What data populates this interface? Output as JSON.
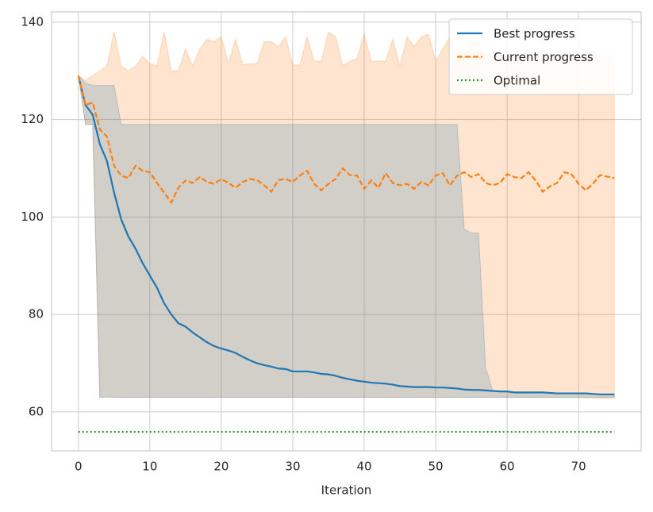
{
  "chart_data": {
    "type": "line",
    "xlabel": "Iteration",
    "x": [
      0,
      1,
      2,
      3,
      4,
      5,
      6,
      7,
      8,
      9,
      10,
      11,
      12,
      13,
      14,
      15,
      16,
      17,
      18,
      19,
      20,
      21,
      22,
      23,
      24,
      25,
      26,
      27,
      28,
      29,
      30,
      31,
      32,
      33,
      34,
      35,
      36,
      37,
      38,
      39,
      40,
      41,
      42,
      43,
      44,
      45,
      46,
      47,
      48,
      49,
      50,
      51,
      52,
      53,
      54,
      55,
      56,
      57,
      58,
      59,
      60,
      61,
      62,
      63,
      64,
      65,
      66,
      67,
      68,
      69,
      70,
      71,
      72,
      73,
      74,
      75
    ],
    "series": [
      {
        "name": "Best progress",
        "color": "#1f77b4",
        "dash": "solid",
        "values": [
          129,
          123,
          121,
          115,
          111.5,
          105,
          99.5,
          96,
          93.5,
          90.5,
          88,
          85.5,
          82.3,
          80,
          78.2,
          77.5,
          76.3,
          75.3,
          74.3,
          73.5,
          73,
          72.6,
          72.1,
          71.3,
          70.6,
          70,
          69.6,
          69.3,
          68.9,
          68.8,
          68.3,
          68.3,
          68.3,
          68.1,
          67.8,
          67.7,
          67.4,
          67,
          66.7,
          66.4,
          66.2,
          66,
          65.9,
          65.8,
          65.6,
          65.3,
          65.2,
          65.1,
          65.1,
          65.1,
          65,
          65,
          64.9,
          64.8,
          64.6,
          64.5,
          64.5,
          64.4,
          64.3,
          64.2,
          64.2,
          64,
          64,
          64,
          64,
          64,
          63.9,
          63.8,
          63.8,
          63.8,
          63.8,
          63.8,
          63.7,
          63.6,
          63.6,
          63.6
        ]
      },
      {
        "name": "Current progress",
        "color": "#ff7f0e",
        "dash": "dashed",
        "values": [
          129,
          123,
          123.5,
          118,
          116.5,
          110.5,
          108.5,
          108,
          110.5,
          109.5,
          109.2,
          107,
          105,
          103,
          106,
          107.5,
          107,
          108.2,
          107.2,
          106.8,
          107.8,
          107,
          106,
          107.2,
          107.8,
          107.6,
          106.5,
          105.2,
          107.6,
          107.8,
          107.2,
          108.5,
          109.5,
          106.8,
          105.5,
          106.8,
          107.8,
          110,
          108.6,
          108.5,
          105.8,
          107.5,
          106,
          109,
          107,
          106.5,
          106.8,
          105.8,
          107.2,
          106.5,
          108.5,
          109,
          106.5,
          108.5,
          109.2,
          108.2,
          108.8,
          107,
          106.5,
          107,
          108.8,
          108.2,
          108,
          109.2,
          107.5,
          105.2,
          106.3,
          107,
          109.2,
          108.8,
          106.8,
          105.5,
          106.8,
          108.6,
          108.3,
          108
        ]
      },
      {
        "name": "Optimal",
        "color": "#2ca02c",
        "dash": "dotted",
        "x": [
          0,
          75
        ],
        "values": [
          55.9,
          55.9
        ]
      }
    ],
    "bands": [
      {
        "color": "#ff7f0e",
        "upper": [
          129,
          128,
          129,
          130,
          131,
          138,
          131,
          130,
          131,
          133,
          131.5,
          131,
          138,
          130,
          130,
          134.5,
          131,
          134.5,
          136.5,
          136,
          137,
          131.5,
          136.5,
          131.2,
          131.5,
          131.5,
          136,
          136,
          135,
          137,
          131.2,
          131.2,
          137,
          132,
          132,
          138,
          137,
          131,
          132,
          132.5,
          137.5,
          132,
          132,
          132,
          136.5,
          131,
          137,
          135,
          137,
          137.5,
          132,
          134.5,
          137,
          133,
          133.5,
          136,
          136,
          133,
          133.5,
          133,
          133,
          133,
          133,
          133,
          133,
          133,
          133,
          133,
          133,
          133,
          133,
          133,
          133,
          133,
          133,
          133
        ],
        "lower": [
          129,
          119,
          119,
          63,
          63.2,
          63,
          63,
          63,
          63,
          63,
          63,
          63,
          63,
          63,
          63,
          63,
          63,
          63,
          63,
          63,
          63,
          63,
          63,
          63,
          63,
          63,
          63,
          63,
          63,
          63,
          63,
          63,
          63,
          63,
          63,
          63,
          63,
          63,
          63,
          63,
          63,
          63,
          63,
          63,
          63,
          63,
          63,
          63,
          63,
          63,
          63,
          63,
          63,
          63,
          63,
          63,
          63,
          63,
          63,
          63,
          63,
          63,
          63,
          63,
          63,
          63,
          63,
          63,
          63,
          63,
          63,
          62.9,
          62.9,
          62.8,
          62.8,
          62.8
        ]
      },
      {
        "color": "#1f77b4",
        "upper": [
          129,
          127.5,
          127,
          127,
          127,
          127,
          119,
          119,
          119,
          119,
          119,
          119,
          119,
          119,
          119,
          119,
          119,
          119,
          119,
          119,
          119,
          119,
          119,
          119,
          119,
          119,
          119,
          119,
          119,
          119,
          119,
          119,
          119,
          119,
          119,
          119,
          119,
          119,
          119,
          119,
          119,
          119,
          119,
          119,
          119,
          119,
          119,
          119,
          119,
          119,
          119,
          119,
          119,
          119,
          97.5,
          96.7,
          96.7,
          69,
          64.3,
          64.2,
          64.2,
          64,
          64,
          64,
          64,
          64,
          63.9,
          63.8,
          63.8,
          63.8,
          63.8,
          63.8,
          63.7,
          63.6,
          63.6,
          63.6
        ],
        "lower": [
          129,
          119,
          119,
          63,
          63,
          63,
          63,
          63,
          63,
          63,
          63,
          63,
          63,
          63,
          63,
          63,
          63,
          63,
          63,
          63,
          63,
          63,
          63,
          63,
          63,
          63,
          63,
          63,
          63,
          63,
          63,
          63,
          63,
          63,
          63,
          63,
          63,
          63,
          63,
          63,
          63,
          63,
          63,
          63,
          63,
          63,
          63,
          63,
          63,
          63,
          63,
          63,
          63,
          63,
          63,
          63,
          63,
          63,
          63,
          63,
          63,
          63,
          63,
          63,
          63,
          63,
          63,
          63,
          63,
          63,
          63,
          63,
          63,
          63,
          63,
          63
        ]
      }
    ],
    "xlim": [
      -3.75,
      78.75
    ],
    "ylim": [
      52,
      142.1
    ],
    "xticks": [
      0,
      10,
      20,
      30,
      40,
      50,
      60,
      70
    ],
    "yticks": [
      60,
      80,
      100,
      120,
      140
    ],
    "grid": true,
    "legend": "upper right"
  }
}
